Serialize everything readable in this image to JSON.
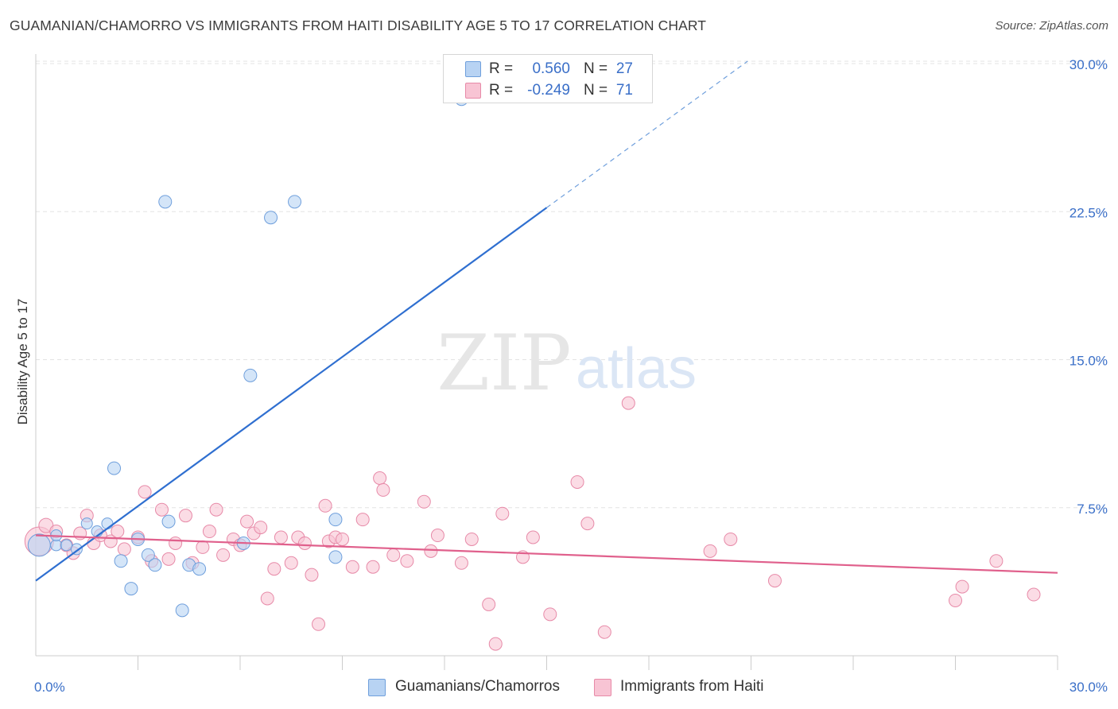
{
  "title": "GUAMANIAN/CHAMORRO VS IMMIGRANTS FROM HAITI DISABILITY AGE 5 TO 17 CORRELATION CHART",
  "source": "Source: ZipAtlas.com",
  "watermark": {
    "zip": "ZIP",
    "atlas": "atlas"
  },
  "colors": {
    "blue_fill": "#b8d3f3",
    "blue_stroke": "#6f9fdc",
    "blue_line": "#2f6fd0",
    "pink_fill": "#f8c4d4",
    "pink_stroke": "#e78aa8",
    "pink_line": "#e0608c",
    "axis_label": "#3a6fc8",
    "grid": "#e3e3e3"
  },
  "legend": {
    "rows": [
      {
        "r_label": "R =",
        "r_value": "0.560",
        "n_label": "N =",
        "n_value": "27"
      },
      {
        "r_label": "R =",
        "r_value": "-0.249",
        "n_label": "N =",
        "n_value": "71"
      }
    ]
  },
  "bottom_legend": {
    "items": [
      {
        "label": "Guamanians/Chamorros"
      },
      {
        "label": "Immigrants from Haiti"
      }
    ]
  },
  "chart_data": {
    "type": "scatter",
    "title": "GUAMANIAN/CHAMORRO VS IMMIGRANTS FROM HAITI DISABILITY AGE 5 TO 17 CORRELATION CHART",
    "ylabel": "Disability Age 5 to 17",
    "xlabel": "",
    "xlim": [
      0,
      30
    ],
    "ylim": [
      0,
      30
    ],
    "x_tick_labels": [
      "0.0%",
      "30.0%"
    ],
    "y_tick_labels": [
      "7.5%",
      "15.0%",
      "22.5%",
      "30.0%"
    ],
    "y_ticks": [
      7.5,
      15.0,
      22.5,
      30.0
    ],
    "grid": true,
    "legend_position": "top-center",
    "series": [
      {
        "name": "Guamanians/Chamorros",
        "r": 0.56,
        "n": 27,
        "trend": {
          "x0": 0,
          "y0": 3.8,
          "x1": 15.0,
          "y1": 22.7,
          "dashed_to_x": 20.9,
          "dashed_to_y": 30.0
        },
        "points": [
          [
            0.1,
            5.6,
            14
          ],
          [
            0.6,
            5.6,
            7
          ],
          [
            0.6,
            6.1,
            7
          ],
          [
            0.9,
            5.6,
            7
          ],
          [
            1.2,
            5.4,
            7
          ],
          [
            1.5,
            6.7,
            7
          ],
          [
            1.8,
            6.3,
            7
          ],
          [
            2.1,
            6.7,
            7
          ],
          [
            2.3,
            9.5,
            8
          ],
          [
            2.5,
            4.8,
            8
          ],
          [
            2.8,
            3.4,
            8
          ],
          [
            3.0,
            5.9,
            8
          ],
          [
            3.3,
            5.1,
            8
          ],
          [
            3.5,
            4.6,
            8
          ],
          [
            3.8,
            23.0,
            8
          ],
          [
            3.9,
            6.8,
            8
          ],
          [
            4.3,
            2.3,
            8
          ],
          [
            4.5,
            4.6,
            8
          ],
          [
            4.8,
            4.4,
            8
          ],
          [
            6.1,
            5.7,
            8
          ],
          [
            6.3,
            14.2,
            8
          ],
          [
            6.9,
            22.2,
            8
          ],
          [
            7.6,
            23.0,
            8
          ],
          [
            8.8,
            6.9,
            8
          ],
          [
            8.8,
            5.0,
            8
          ],
          [
            12.5,
            28.2,
            8
          ]
        ]
      },
      {
        "name": "Immigrants from Haiti",
        "r": -0.249,
        "n": 71,
        "trend": {
          "x0": 0,
          "y0": 6.1,
          "x1": 30.0,
          "y1": 4.2
        },
        "points": [
          [
            0.1,
            5.8,
            18
          ],
          [
            0.3,
            6.6,
            9
          ],
          [
            0.6,
            6.3,
            8
          ],
          [
            0.9,
            5.6,
            8
          ],
          [
            1.1,
            5.2,
            8
          ],
          [
            1.3,
            6.2,
            8
          ],
          [
            1.5,
            7.1,
            8
          ],
          [
            1.7,
            5.7,
            8
          ],
          [
            1.9,
            6.1,
            8
          ],
          [
            2.2,
            5.8,
            8
          ],
          [
            2.4,
            6.3,
            8
          ],
          [
            2.6,
            5.4,
            8
          ],
          [
            3.0,
            6.0,
            8
          ],
          [
            3.2,
            8.3,
            8
          ],
          [
            3.4,
            4.8,
            8
          ],
          [
            3.7,
            7.4,
            8
          ],
          [
            3.9,
            4.9,
            8
          ],
          [
            4.1,
            5.7,
            8
          ],
          [
            4.4,
            7.1,
            8
          ],
          [
            4.6,
            4.7,
            8
          ],
          [
            4.9,
            5.5,
            8
          ],
          [
            5.1,
            6.3,
            8
          ],
          [
            5.3,
            7.4,
            8
          ],
          [
            5.5,
            5.1,
            8
          ],
          [
            5.8,
            5.9,
            8
          ],
          [
            6.0,
            5.6,
            8
          ],
          [
            6.2,
            6.8,
            8
          ],
          [
            6.4,
            6.2,
            8
          ],
          [
            6.6,
            6.5,
            8
          ],
          [
            6.8,
            2.9,
            8
          ],
          [
            7.0,
            4.4,
            8
          ],
          [
            7.2,
            6.0,
            8
          ],
          [
            7.5,
            4.7,
            8
          ],
          [
            7.7,
            6.0,
            8
          ],
          [
            7.9,
            5.7,
            8
          ],
          [
            8.1,
            4.1,
            8
          ],
          [
            8.3,
            1.6,
            8
          ],
          [
            8.5,
            7.6,
            8
          ],
          [
            8.6,
            5.8,
            8
          ],
          [
            8.8,
            6.0,
            8
          ],
          [
            9.0,
            5.9,
            8
          ],
          [
            9.3,
            4.5,
            8
          ],
          [
            9.6,
            6.9,
            8
          ],
          [
            9.9,
            4.5,
            8
          ],
          [
            10.1,
            9.0,
            8
          ],
          [
            10.2,
            8.4,
            8
          ],
          [
            10.5,
            5.1,
            8
          ],
          [
            10.9,
            4.8,
            8
          ],
          [
            11.4,
            7.8,
            8
          ],
          [
            11.6,
            5.3,
            8
          ],
          [
            11.8,
            6.1,
            8
          ],
          [
            12.5,
            4.7,
            8
          ],
          [
            12.8,
            5.9,
            8
          ],
          [
            13.3,
            2.6,
            8
          ],
          [
            13.5,
            0.6,
            8
          ],
          [
            13.7,
            7.2,
            8
          ],
          [
            14.3,
            5.0,
            8
          ],
          [
            14.6,
            6.0,
            8
          ],
          [
            15.1,
            2.1,
            8
          ],
          [
            15.9,
            8.8,
            8
          ],
          [
            16.2,
            6.7,
            8
          ],
          [
            16.7,
            1.2,
            8
          ],
          [
            17.4,
            12.8,
            8
          ],
          [
            19.8,
            5.3,
            8
          ],
          [
            20.4,
            5.9,
            8
          ],
          [
            21.7,
            3.8,
            8
          ],
          [
            27.0,
            2.8,
            8
          ],
          [
            27.2,
            3.5,
            8
          ],
          [
            28.2,
            4.8,
            8
          ],
          [
            29.3,
            3.1,
            8
          ]
        ]
      }
    ]
  }
}
